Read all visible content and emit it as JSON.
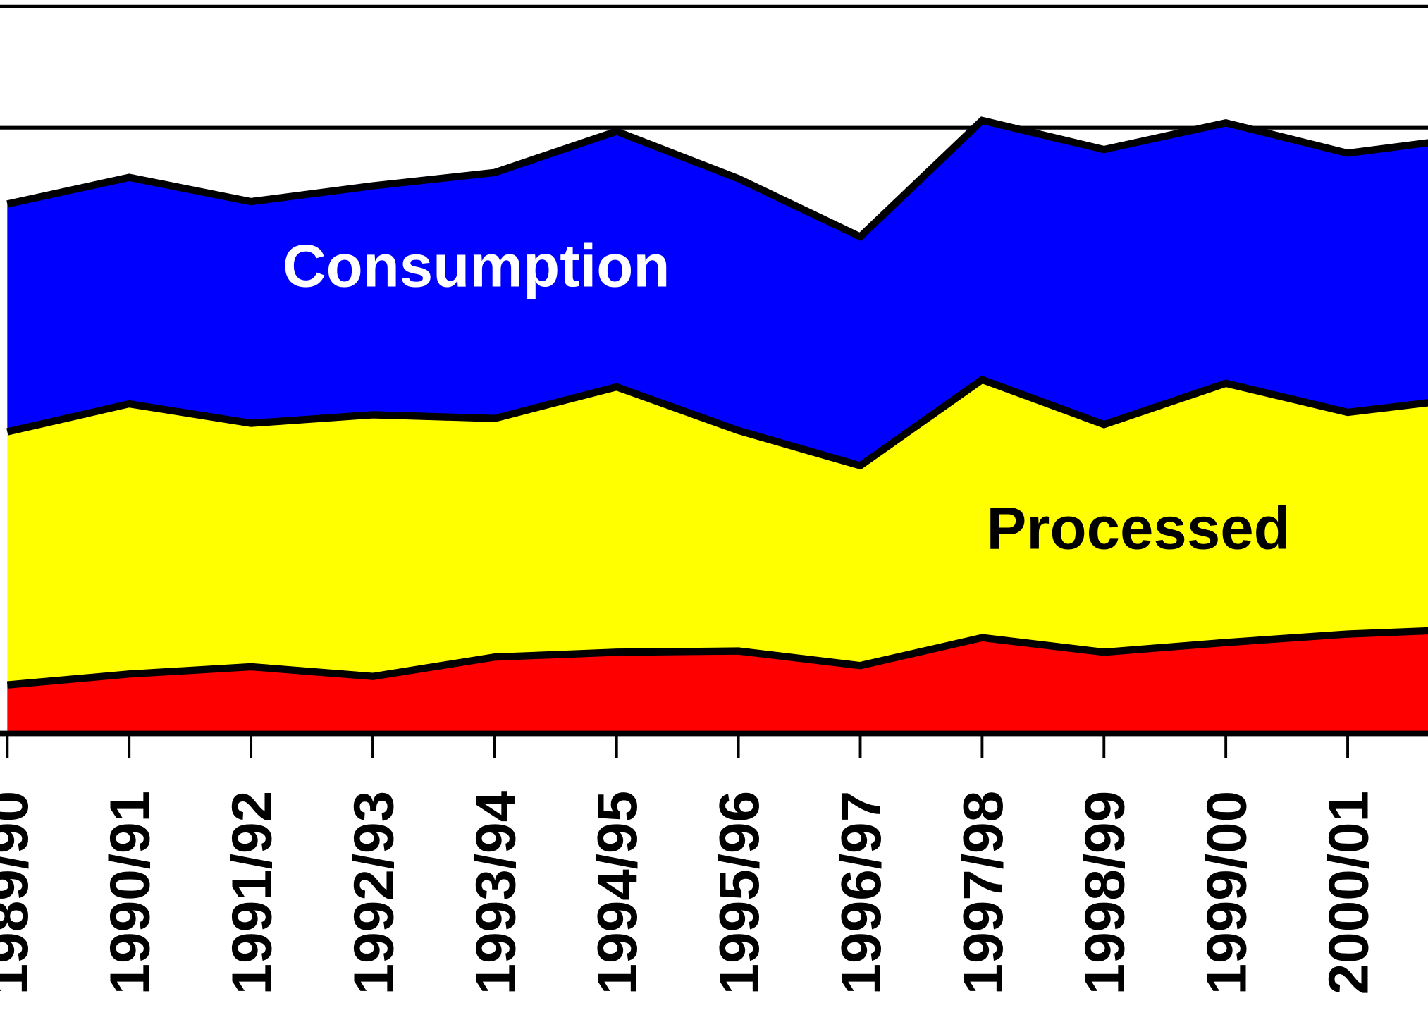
{
  "chart_data": {
    "type": "stacked_area",
    "categories": [
      "1989/90",
      "1990/91",
      "1991/92",
      "1992/93",
      "1993/94",
      "1994/95",
      "1995/96",
      "1996/97",
      "1997/98",
      "1998/99",
      "1999/00",
      "2000/01",
      null
    ],
    "series": [
      {
        "color": "#ff0000",
        "values": [
          0.4,
          0.49,
          0.55,
          0.47,
          0.63,
          0.67,
          0.68,
          0.56,
          0.79,
          0.67,
          0.75,
          0.82,
          0.86
        ]
      },
      {
        "name": "Processed",
        "color": "#ffff00",
        "label_color": "#000000",
        "values": [
          2.09,
          2.23,
          2.01,
          2.16,
          1.97,
          2.19,
          1.82,
          1.65,
          2.13,
          1.88,
          2.14,
          1.83,
          1.91
        ]
      },
      {
        "name": "Consumption",
        "color": "#0000ff",
        "label_color": "#ffffff",
        "values": [
          1.88,
          1.87,
          1.83,
          1.89,
          2.03,
          2.11,
          2.08,
          1.89,
          2.14,
          2.27,
          2.15,
          2.14,
          2.15
        ]
      }
    ],
    "ylim": [
      0,
      6
    ],
    "grid_lines": [
      5,
      6
    ],
    "grid": true
  }
}
